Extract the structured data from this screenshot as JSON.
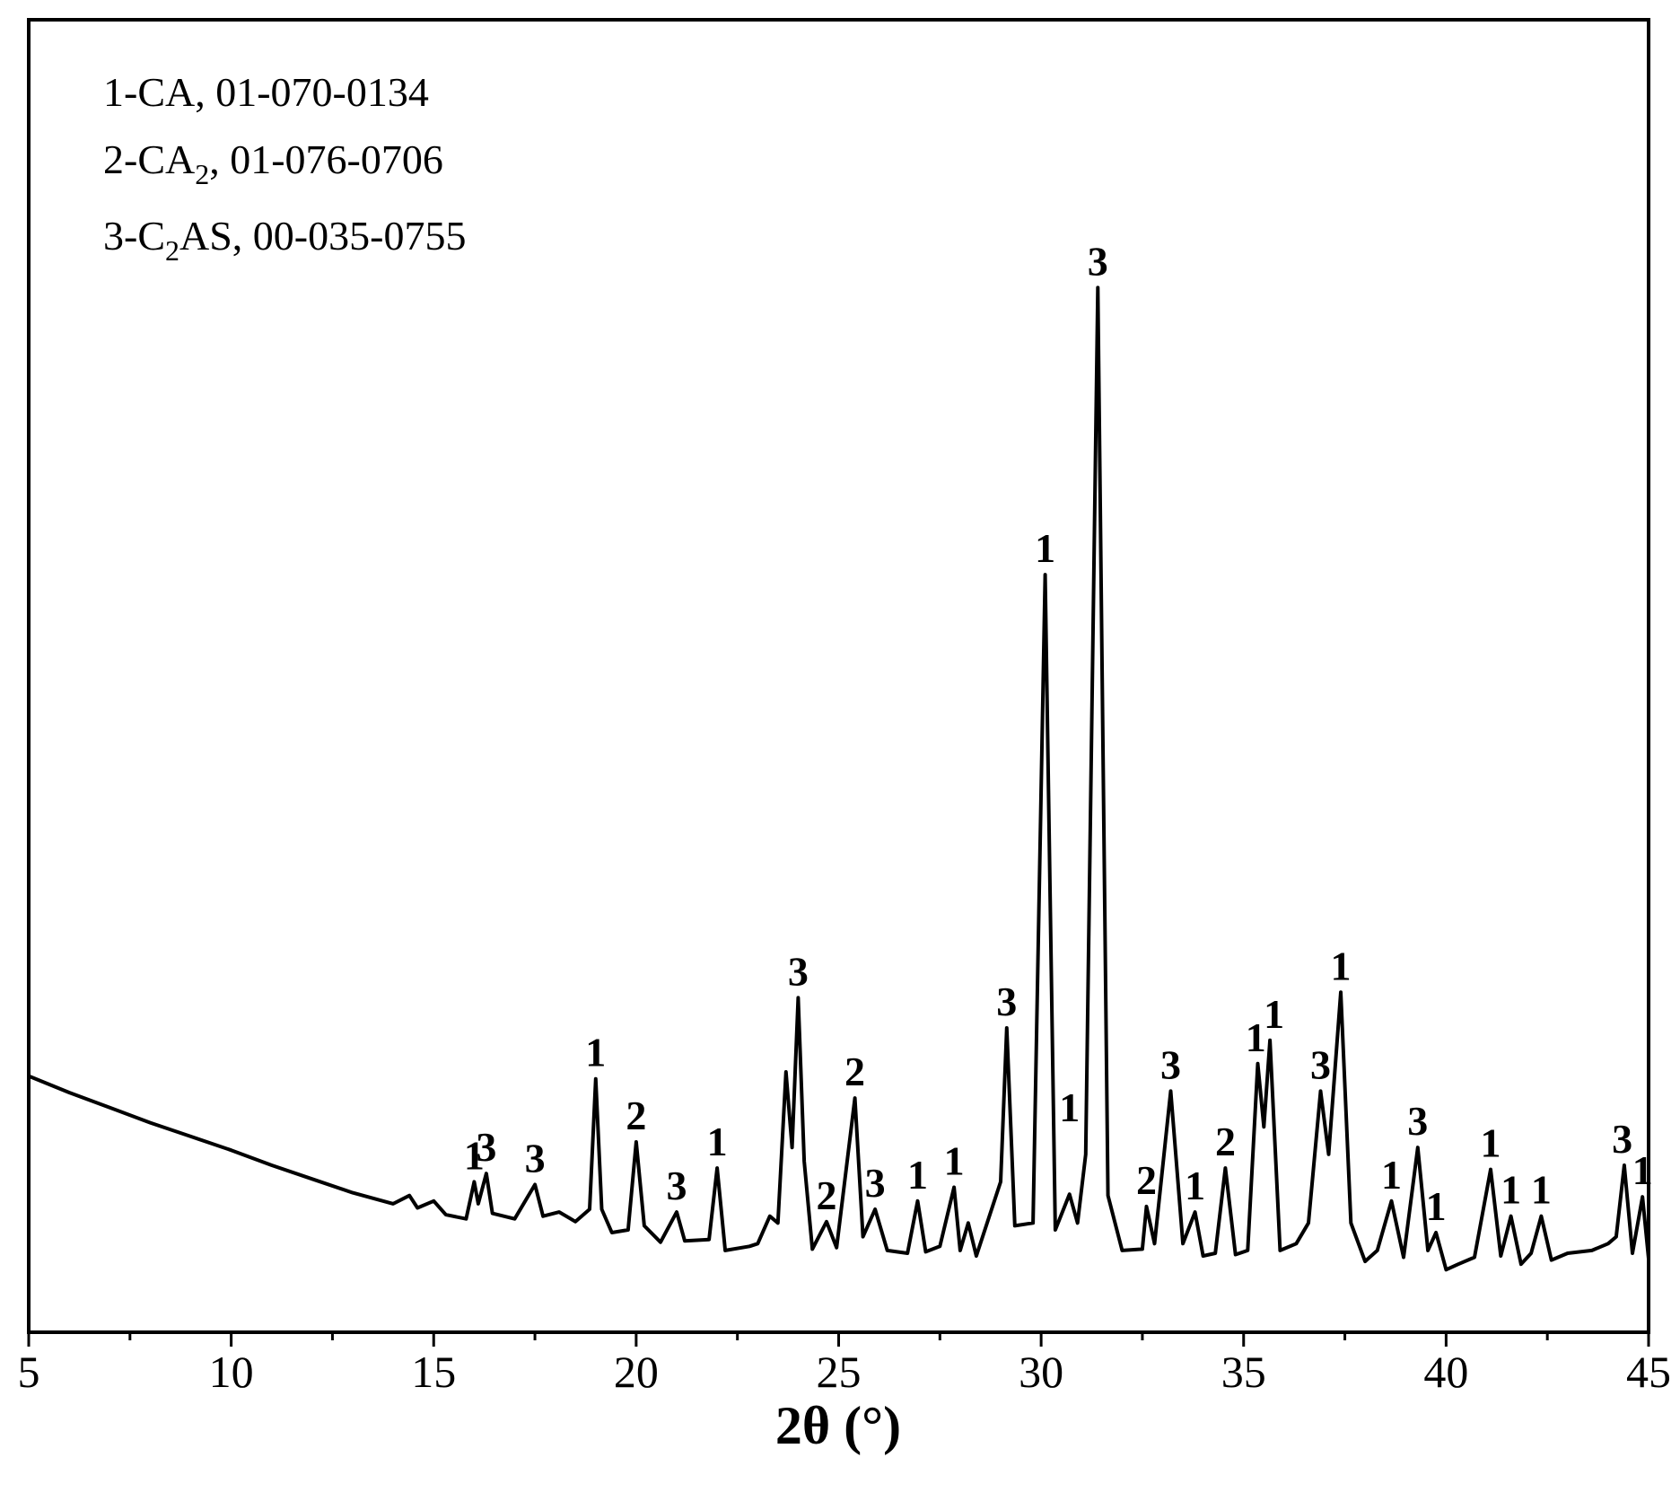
{
  "chart_data": {
    "type": "line",
    "xlabel": "2θ (°)",
    "ylabel": "",
    "xlim": [
      5,
      45
    ],
    "ylim": [
      0,
      1.0
    ],
    "x_ticks": [
      "5",
      "10",
      "15",
      "20",
      "25",
      "30",
      "35",
      "40",
      "45"
    ],
    "legend": [
      {
        "text": "1-CA, 01-070-0134",
        "prefix": "1-CA",
        "sub": "",
        "suffix": ", 01-070-0134"
      },
      {
        "text": "2-CA2, 01-076-0706",
        "prefix": "2-CA",
        "sub": "2",
        "suffix": ", 01-076-0706"
      },
      {
        "text": "3-C2AS, 00-035-0755",
        "prefix": "3-C",
        "sub": "2",
        "suffix": "AS, 00-035-0755"
      }
    ],
    "series": [
      {
        "points": [
          [
            5.0,
            0.197
          ],
          [
            6.0,
            0.185
          ],
          [
            7.0,
            0.174
          ],
          [
            8.0,
            0.163
          ],
          [
            9.0,
            0.153
          ],
          [
            10.0,
            0.143
          ],
          [
            11.0,
            0.132
          ],
          [
            12.0,
            0.122
          ],
          [
            13.0,
            0.112
          ],
          [
            14.0,
            0.104
          ],
          [
            14.4,
            0.11
          ],
          [
            14.6,
            0.101
          ],
          [
            15.0,
            0.106
          ],
          [
            15.3,
            0.096
          ],
          [
            15.8,
            0.093
          ],
          [
            16.0,
            0.12
          ],
          [
            16.1,
            0.104
          ],
          [
            16.3,
            0.126
          ],
          [
            16.45,
            0.097
          ],
          [
            17.0,
            0.093
          ],
          [
            17.5,
            0.118
          ],
          [
            17.7,
            0.095
          ],
          [
            18.1,
            0.098
          ],
          [
            18.5,
            0.091
          ],
          [
            18.85,
            0.1
          ],
          [
            19.0,
            0.195
          ],
          [
            19.15,
            0.1
          ],
          [
            19.4,
            0.083
          ],
          [
            19.8,
            0.085
          ],
          [
            20.0,
            0.149
          ],
          [
            20.2,
            0.088
          ],
          [
            20.6,
            0.076
          ],
          [
            21.0,
            0.098
          ],
          [
            21.2,
            0.077
          ],
          [
            21.8,
            0.078
          ],
          [
            22.0,
            0.13
          ],
          [
            22.2,
            0.07
          ],
          [
            22.8,
            0.073
          ],
          [
            23.0,
            0.075
          ],
          [
            23.3,
            0.095
          ],
          [
            23.5,
            0.09
          ],
          [
            23.7,
            0.2
          ],
          [
            23.85,
            0.145
          ],
          [
            24.0,
            0.254
          ],
          [
            24.15,
            0.135
          ],
          [
            24.35,
            0.071
          ],
          [
            24.7,
            0.091
          ],
          [
            24.95,
            0.072
          ],
          [
            25.4,
            0.181
          ],
          [
            25.6,
            0.08
          ],
          [
            25.9,
            0.1
          ],
          [
            26.2,
            0.07
          ],
          [
            26.7,
            0.068
          ],
          [
            26.95,
            0.106
          ],
          [
            27.15,
            0.069
          ],
          [
            27.5,
            0.073
          ],
          [
            27.85,
            0.116
          ],
          [
            28.0,
            0.07
          ],
          [
            28.2,
            0.09
          ],
          [
            28.4,
            0.066
          ],
          [
            29.0,
            0.12
          ],
          [
            29.15,
            0.232
          ],
          [
            29.35,
            0.088
          ],
          [
            29.8,
            0.09
          ],
          [
            30.1,
            0.562
          ],
          [
            30.35,
            0.085
          ],
          [
            30.7,
            0.111
          ],
          [
            30.9,
            0.09
          ],
          [
            31.1,
            0.14
          ],
          [
            31.4,
            0.771
          ],
          [
            31.65,
            0.11
          ],
          [
            32.0,
            0.07
          ],
          [
            32.5,
            0.071
          ],
          [
            32.6,
            0.102
          ],
          [
            32.8,
            0.075
          ],
          [
            33.2,
            0.186
          ],
          [
            33.5,
            0.075
          ],
          [
            33.8,
            0.098
          ],
          [
            34.0,
            0.066
          ],
          [
            34.3,
            0.068
          ],
          [
            34.55,
            0.13
          ],
          [
            34.8,
            0.067
          ],
          [
            35.1,
            0.07
          ],
          [
            35.35,
            0.206
          ],
          [
            35.5,
            0.16
          ],
          [
            35.65,
            0.223
          ],
          [
            35.9,
            0.07
          ],
          [
            36.3,
            0.075
          ],
          [
            36.6,
            0.09
          ],
          [
            36.9,
            0.186
          ],
          [
            37.1,
            0.14
          ],
          [
            37.4,
            0.258
          ],
          [
            37.65,
            0.09
          ],
          [
            38.0,
            0.062
          ],
          [
            38.3,
            0.07
          ],
          [
            38.65,
            0.106
          ],
          [
            38.95,
            0.065
          ],
          [
            39.3,
            0.145
          ],
          [
            39.55,
            0.07
          ],
          [
            39.75,
            0.083
          ],
          [
            40.0,
            0.056
          ],
          [
            40.3,
            0.06
          ],
          [
            40.7,
            0.065
          ],
          [
            41.1,
            0.129
          ],
          [
            41.35,
            0.066
          ],
          [
            41.6,
            0.095
          ],
          [
            41.85,
            0.06
          ],
          [
            42.1,
            0.068
          ],
          [
            42.35,
            0.095
          ],
          [
            42.6,
            0.063
          ],
          [
            43.0,
            0.068
          ],
          [
            43.6,
            0.07
          ],
          [
            44.0,
            0.075
          ],
          [
            44.2,
            0.08
          ],
          [
            44.4,
            0.132
          ],
          [
            44.6,
            0.068
          ],
          [
            44.85,
            0.109
          ],
          [
            45.0,
            0.064
          ]
        ]
      }
    ],
    "peak_labels": [
      {
        "x": 16.0,
        "y": 0.12,
        "text": "1"
      },
      {
        "x": 16.3,
        "y": 0.126,
        "text": "3"
      },
      {
        "x": 17.5,
        "y": 0.118,
        "text": "3"
      },
      {
        "x": 19.0,
        "y": 0.195,
        "text": "1"
      },
      {
        "x": 20.0,
        "y": 0.149,
        "text": "2"
      },
      {
        "x": 21.0,
        "y": 0.098,
        "text": "3"
      },
      {
        "x": 22.0,
        "y": 0.13,
        "text": "1"
      },
      {
        "x": 24.0,
        "y": 0.254,
        "text": "3"
      },
      {
        "x": 24.7,
        "y": 0.091,
        "text": "2"
      },
      {
        "x": 25.4,
        "y": 0.181,
        "text": "2"
      },
      {
        "x": 25.9,
        "y": 0.1,
        "text": "3"
      },
      {
        "x": 26.95,
        "y": 0.106,
        "text": "1"
      },
      {
        "x": 27.85,
        "y": 0.116,
        "text": "1"
      },
      {
        "x": 29.15,
        "y": 0.232,
        "text": "3"
      },
      {
        "x": 30.1,
        "y": 0.562,
        "text": "1"
      },
      {
        "x": 30.7,
        "y": 0.155,
        "text": "1"
      },
      {
        "x": 31.4,
        "y": 0.771,
        "text": "3"
      },
      {
        "x": 32.6,
        "y": 0.102,
        "text": "2"
      },
      {
        "x": 33.2,
        "y": 0.186,
        "text": "3"
      },
      {
        "x": 33.8,
        "y": 0.098,
        "text": "1"
      },
      {
        "x": 34.55,
        "y": 0.13,
        "text": "2"
      },
      {
        "x": 35.3,
        "y": 0.206,
        "text": "1"
      },
      {
        "x": 35.75,
        "y": 0.223,
        "text": "1"
      },
      {
        "x": 36.9,
        "y": 0.186,
        "text": "3"
      },
      {
        "x": 37.4,
        "y": 0.258,
        "text": "1"
      },
      {
        "x": 38.65,
        "y": 0.106,
        "text": "1"
      },
      {
        "x": 39.3,
        "y": 0.145,
        "text": "3"
      },
      {
        "x": 39.75,
        "y": 0.083,
        "text": "1"
      },
      {
        "x": 41.1,
        "y": 0.129,
        "text": "1"
      },
      {
        "x": 41.6,
        "y": 0.095,
        "text": "1"
      },
      {
        "x": 42.35,
        "y": 0.095,
        "text": "1"
      },
      {
        "x": 44.35,
        "y": 0.132,
        "text": "3"
      },
      {
        "x": 44.85,
        "y": 0.109,
        "text": "1"
      }
    ],
    "grid": false,
    "legend_placement": "top-left",
    "line_color": "#000000"
  }
}
